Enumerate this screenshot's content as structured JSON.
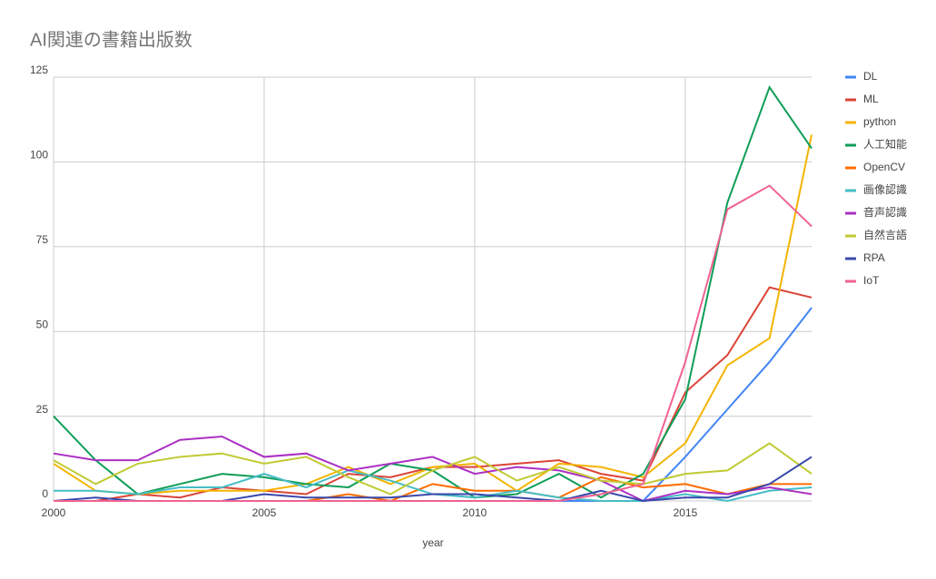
{
  "chart_data": {
    "type": "line",
    "title": "AI関連の書籍出版数",
    "x_label": "year",
    "x": [
      2000,
      2001,
      2002,
      2003,
      2004,
      2005,
      2006,
      2007,
      2008,
      2009,
      2010,
      2011,
      2012,
      2013,
      2014,
      2015,
      2016,
      2017,
      2018
    ],
    "xlim": [
      2000,
      2018
    ],
    "xticks": [
      2000,
      2005,
      2010,
      2015
    ],
    "ylim": [
      0,
      125
    ],
    "yticks": [
      0,
      25,
      50,
      75,
      100,
      125
    ],
    "grid": true,
    "legend": "right",
    "series": [
      {
        "name": "DL",
        "color": "#4285f4",
        "values": [
          0,
          0,
          0,
          0,
          0,
          0,
          0,
          0,
          0,
          0,
          0,
          0,
          0,
          0,
          0,
          13,
          27,
          41,
          57
        ]
      },
      {
        "name": "ML",
        "color": "#db4437",
        "values": [
          0,
          0,
          2,
          1,
          4,
          3,
          2,
          8,
          7,
          10,
          10,
          11,
          12,
          8,
          6,
          32,
          43,
          63,
          60
        ]
      },
      {
        "name": "python",
        "color": "#f4b400",
        "values": [
          11,
          3,
          2,
          3,
          3,
          3,
          5,
          10,
          5,
          10,
          11,
          3,
          11,
          10,
          7,
          17,
          40,
          48,
          108
        ]
      },
      {
        "name": "人工知能",
        "color": "#0f9d58",
        "values": [
          25,
          12,
          2,
          5,
          8,
          7,
          5,
          4,
          11,
          9,
          1,
          2,
          8,
          1,
          8,
          30,
          88,
          122,
          104
        ]
      },
      {
        "name": "OpenCV",
        "color": "#ff6d00",
        "values": [
          0,
          0,
          0,
          0,
          0,
          0,
          0,
          2,
          0,
          5,
          3,
          3,
          1,
          7,
          4,
          5,
          2,
          5,
          5
        ]
      },
      {
        "name": "画像認識",
        "color": "#46bdc6",
        "values": [
          3,
          3,
          2,
          4,
          4,
          8,
          4,
          9,
          6,
          2,
          1,
          3,
          1,
          0,
          0,
          2,
          0,
          3,
          4
        ]
      },
      {
        "name": "音声認識",
        "color": "#ab30c4",
        "values": [
          14,
          12,
          12,
          18,
          19,
          13,
          14,
          9,
          11,
          13,
          8,
          10,
          9,
          6,
          0,
          3,
          2,
          4,
          2
        ]
      },
      {
        "name": "自然言語",
        "color": "#c0ca33",
        "values": [
          12,
          5,
          11,
          13,
          14,
          11,
          13,
          7,
          2,
          9,
          13,
          6,
          10,
          6,
          5,
          8,
          9,
          17,
          8
        ]
      },
      {
        "name": "RPA",
        "color": "#3949ab",
        "values": [
          0,
          1,
          0,
          0,
          0,
          2,
          1,
          1,
          1,
          2,
          2,
          1,
          0,
          3,
          0,
          1,
          1,
          5,
          13
        ]
      },
      {
        "name": "IoT",
        "color": "#f06292",
        "values": [
          0,
          0,
          0,
          0,
          0,
          0,
          0,
          0,
          0,
          0,
          0,
          0,
          0,
          2,
          5,
          41,
          86,
          93,
          81
        ]
      }
    ]
  }
}
